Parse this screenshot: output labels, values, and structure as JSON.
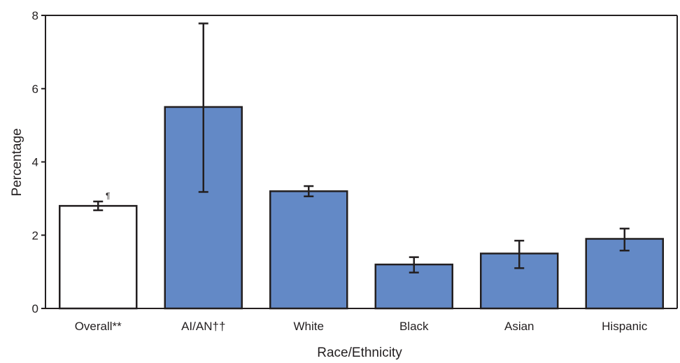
{
  "chart_data": {
    "type": "bar",
    "title": "",
    "xlabel": "Race/Ethnicity",
    "ylabel": "Percentage",
    "ylim": [
      0,
      8
    ],
    "yticks": [
      0,
      2,
      4,
      6,
      8
    ],
    "grid": false,
    "categories": [
      "Overall**",
      "AI/AN††",
      "White",
      "Black",
      "Asian",
      "Hispanic"
    ],
    "values": [
      2.8,
      5.5,
      3.2,
      1.2,
      1.5,
      1.9
    ],
    "ci_lower": [
      2.68,
      3.18,
      3.06,
      0.98,
      1.1,
      1.58
    ],
    "ci_upper": [
      2.92,
      7.78,
      3.34,
      1.4,
      1.85,
      2.18
    ],
    "annotations": [
      {
        "category": "Overall**",
        "text": "¶"
      }
    ],
    "colors": {
      "overall_fill": "#ffffff",
      "group_fill": "#6389c6",
      "stroke": "#231f20"
    }
  }
}
